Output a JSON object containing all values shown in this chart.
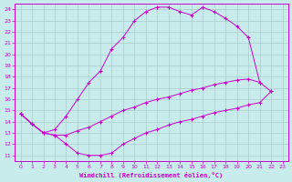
{
  "xlabel": "Windchill (Refroidissement éolien,°C)",
  "bg_color": "#c8ecec",
  "line_color": "#cc00cc",
  "grid_color": "#aacccc",
  "xlim": [
    -0.5,
    23.5
  ],
  "ylim": [
    10.5,
    24.5
  ],
  "xticks": [
    0,
    1,
    2,
    3,
    4,
    5,
    6,
    7,
    8,
    9,
    10,
    11,
    12,
    13,
    14,
    15,
    16,
    17,
    18,
    19,
    20,
    21,
    22,
    23
  ],
  "yticks": [
    11,
    12,
    13,
    14,
    15,
    16,
    17,
    18,
    19,
    20,
    21,
    22,
    23,
    24
  ],
  "line1_x": [
    0,
    1,
    2,
    3,
    4,
    5,
    6,
    7,
    8,
    9,
    10,
    11,
    12,
    13,
    14,
    15,
    16,
    17,
    18,
    19,
    20,
    21
  ],
  "line1_y": [
    14.7,
    13.8,
    13.0,
    13.3,
    14.5,
    16.0,
    17.5,
    18.5,
    20.5,
    21.5,
    23.0,
    23.8,
    24.2,
    24.2,
    23.8,
    23.5,
    24.2,
    23.8,
    23.2,
    22.5,
    21.5,
    17.5
  ],
  "line2_x": [
    0,
    1,
    2,
    3,
    4,
    5,
    6,
    7,
    8,
    9,
    10,
    11,
    12,
    13,
    14,
    15,
    16,
    17,
    18,
    19,
    20,
    21,
    22
  ],
  "line2_y": [
    14.7,
    13.8,
    13.0,
    12.8,
    12.8,
    13.2,
    13.5,
    14.0,
    14.5,
    15.0,
    15.3,
    15.7,
    16.0,
    16.2,
    16.5,
    16.8,
    17.0,
    17.3,
    17.5,
    17.7,
    17.8,
    17.5,
    16.7
  ],
  "line3_x": [
    0,
    1,
    2,
    3,
    4,
    5,
    6,
    7,
    8,
    9,
    10,
    11,
    12,
    13,
    14,
    15,
    16,
    17,
    18,
    19,
    20,
    21,
    22
  ],
  "line3_y": [
    14.7,
    13.8,
    13.0,
    12.8,
    12.0,
    11.2,
    11.0,
    11.0,
    11.2,
    12.0,
    12.5,
    13.0,
    13.3,
    13.7,
    14.0,
    14.2,
    14.5,
    14.8,
    15.0,
    15.2,
    15.5,
    15.7,
    16.7
  ]
}
